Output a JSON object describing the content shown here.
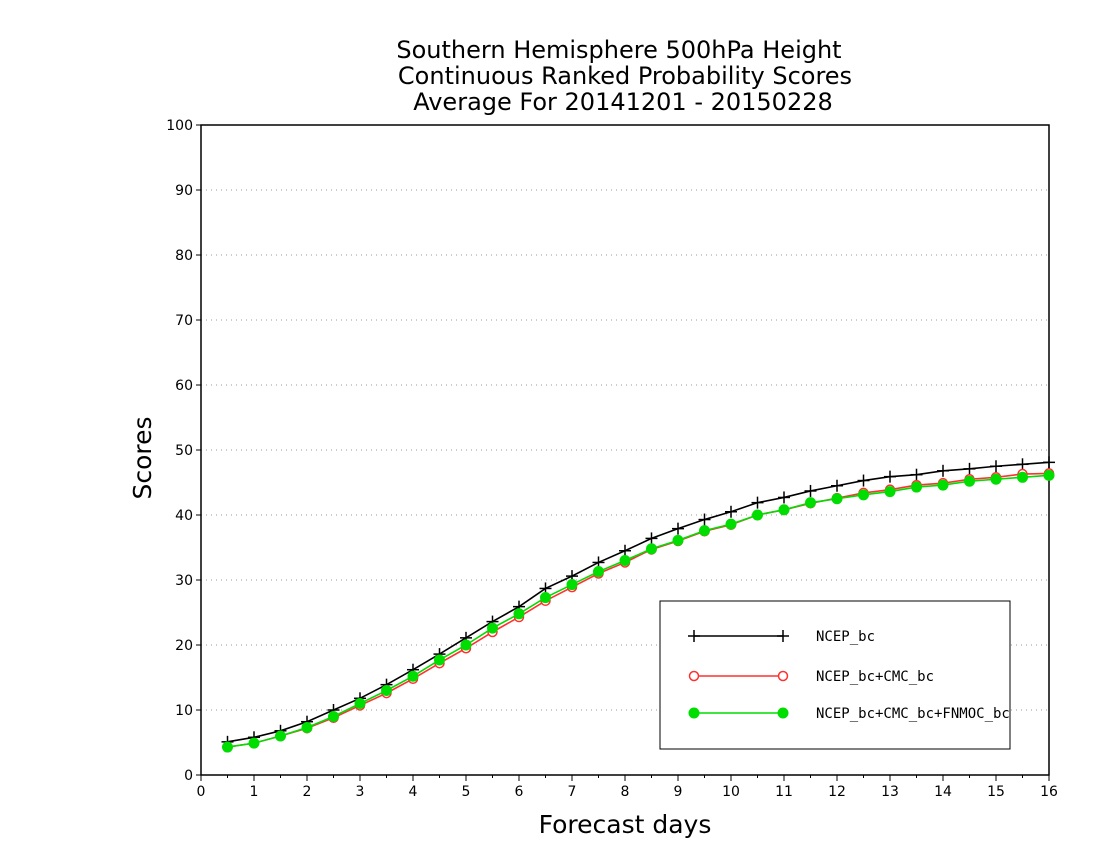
{
  "chart_data": {
    "type": "line",
    "title_lines": [
      "Southern Hemisphere 500hPa Height",
      "Continuous Ranked Probability Scores",
      "Average For 20141201 - 20150228"
    ],
    "xlabel": "Forecast days",
    "ylabel": "Scores",
    "xlim": [
      0,
      16
    ],
    "ylim": [
      0,
      100
    ],
    "xticks": [
      "0",
      "1",
      "2",
      "3",
      "4",
      "5",
      "6",
      "7",
      "8",
      "9",
      "10",
      "11",
      "12",
      "13",
      "14",
      "15",
      "16"
    ],
    "yticks": [
      "0",
      "10",
      "20",
      "30",
      "40",
      "50",
      "60",
      "70",
      "80",
      "90",
      "100"
    ],
    "grid": "horizontal dotted",
    "legend_position": "bottom-right",
    "x": [
      0.5,
      1,
      1.5,
      2,
      2.5,
      3,
      3.5,
      4,
      4.5,
      5,
      5.5,
      6,
      6.5,
      7,
      7.5,
      8,
      8.5,
      9,
      9.5,
      10,
      10.5,
      11,
      11.5,
      12,
      12.5,
      13,
      13.5,
      14,
      14.5,
      15,
      15.5,
      16
    ],
    "series": [
      {
        "name": "NCEP_bc",
        "color": "#000000",
        "marker": "plus",
        "values": [
          5.1,
          5.8,
          6.8,
          8.2,
          10.0,
          11.8,
          13.9,
          16.2,
          18.6,
          21.1,
          23.6,
          25.9,
          28.7,
          30.6,
          32.7,
          34.5,
          36.4,
          37.9,
          39.3,
          40.5,
          41.9,
          42.7,
          43.7,
          44.5,
          45.3,
          45.9,
          46.2,
          46.8,
          47.1,
          47.5,
          47.8,
          48.1
        ]
      },
      {
        "name": "NCEP_bc+CMC_bc",
        "color": "#ff3030",
        "marker": "open-circle",
        "values": [
          4.3,
          4.9,
          6.0,
          7.2,
          8.8,
          10.7,
          12.6,
          14.8,
          17.2,
          19.5,
          22.0,
          24.3,
          26.8,
          28.9,
          31.0,
          32.7,
          34.7,
          36.0,
          37.5,
          38.5,
          40.0,
          40.8,
          41.8,
          42.6,
          43.4,
          43.9,
          44.6,
          44.9,
          45.5,
          45.8,
          46.3,
          46.4
        ]
      },
      {
        "name": "NCEP_bc+CMC_bc+FNMOC_bc",
        "color": "#00dd00",
        "marker": "filled-circle",
        "values": [
          4.3,
          4.9,
          6.0,
          7.3,
          9.0,
          11.0,
          13.0,
          15.2,
          17.7,
          20.0,
          22.6,
          24.8,
          27.3,
          29.3,
          31.3,
          33.0,
          34.8,
          36.1,
          37.6,
          38.6,
          40.0,
          40.8,
          41.9,
          42.5,
          43.1,
          43.6,
          44.3,
          44.6,
          45.2,
          45.5,
          45.8,
          46.1
        ]
      }
    ]
  }
}
